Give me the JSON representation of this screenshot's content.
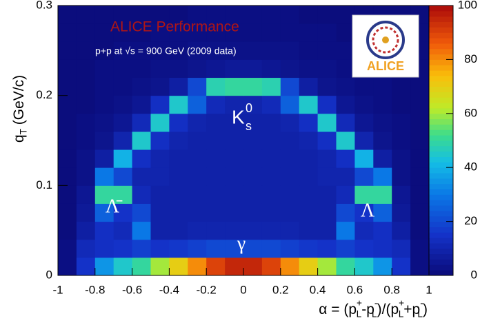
{
  "chart_data": {
    "type": "heatmap",
    "title": "ALICE Performance",
    "subtitle": "p+p at √s = 900 GeV (2009 data)",
    "logo_text": "ALICE",
    "x_label": [
      {
        "text": "α = (p"
      },
      {
        "text": "+",
        "s": "sup"
      },
      {
        "text": "L",
        "s": "sub"
      },
      {
        "text": "-p"
      },
      {
        "text": "-",
        "s": "sup"
      },
      {
        "text": "L",
        "s": "sub"
      },
      {
        "text": ")/(p"
      },
      {
        "text": "+",
        "s": "sup"
      },
      {
        "text": "L",
        "s": "sub"
      },
      {
        "text": "+p"
      },
      {
        "text": "-",
        "s": "sup"
      },
      {
        "text": "L",
        "s": "sub"
      },
      {
        "text": ")"
      }
    ],
    "y_label": [
      {
        "text": "q"
      },
      {
        "text": "T",
        "s": "sub"
      },
      {
        "text": " (GeV/c)"
      }
    ],
    "annotations": [
      {
        "text": "K",
        "sup": "0",
        "sub": "s"
      },
      {
        "text": "Λ̄"
      },
      {
        "text": "Λ"
      },
      {
        "text": "γ"
      }
    ],
    "xlim": [
      -1,
      1
    ],
    "xticks": [
      -1,
      -0.8,
      -0.6,
      -0.4,
      -0.2,
      0,
      0.2,
      0.4,
      0.6,
      0.8,
      1
    ],
    "ylim": [
      0,
      0.3
    ],
    "yticks": [
      0,
      0.1,
      0.2,
      0.3
    ],
    "zlim": [
      0,
      100
    ],
    "zticks": [
      0,
      20,
      40,
      60,
      80,
      100
    ],
    "xbins": [
      -1,
      -0.9,
      -0.8,
      -0.7,
      -0.6,
      -0.5,
      -0.4,
      -0.3,
      -0.2,
      -0.1,
      0,
      0.1,
      0.2,
      0.3,
      0.4,
      0.5,
      0.6,
      0.7,
      0.8,
      0.9,
      1
    ],
    "ybins": [
      0,
      0.02,
      0.04,
      0.06,
      0.08,
      0.1,
      0.12,
      0.14,
      0.16,
      0.18,
      0.2,
      0.22,
      0.24,
      0.26,
      0.28,
      0.3
    ],
    "z": [
      [
        2,
        15,
        35,
        45,
        50,
        60,
        70,
        80,
        90,
        95,
        95,
        90,
        80,
        70,
        60,
        50,
        45,
        35,
        15,
        2
      ],
      [
        2,
        12,
        14,
        15,
        18,
        15,
        16,
        18,
        20,
        20,
        20,
        20,
        18,
        16,
        15,
        18,
        15,
        14,
        12,
        2
      ],
      [
        1,
        8,
        14,
        12,
        30,
        9,
        9,
        10,
        10,
        10,
        10,
        10,
        10,
        9,
        9,
        30,
        12,
        14,
        8,
        1
      ],
      [
        1,
        6,
        25,
        15,
        20,
        9,
        9,
        9,
        9,
        9,
        9,
        9,
        9,
        9,
        9,
        20,
        15,
        25,
        6,
        1
      ],
      [
        1,
        5,
        50,
        50,
        12,
        9,
        9,
        9,
        9,
        9,
        9,
        9,
        9,
        9,
        9,
        12,
        50,
        50,
        5,
        1
      ],
      [
        1,
        3,
        30,
        20,
        10,
        10,
        9,
        9,
        9,
        9,
        9,
        9,
        9,
        9,
        10,
        10,
        20,
        30,
        3,
        1
      ],
      [
        1,
        3,
        8,
        40,
        14,
        10,
        9,
        9,
        9,
        9,
        9,
        9,
        9,
        9,
        10,
        14,
        40,
        8,
        3,
        1
      ],
      [
        1,
        2,
        4,
        10,
        45,
        14,
        10,
        9,
        9,
        9,
        9,
        9,
        9,
        10,
        14,
        45,
        10,
        4,
        2,
        1
      ],
      [
        1,
        2,
        3,
        5,
        12,
        45,
        14,
        10,
        9,
        9,
        9,
        9,
        10,
        14,
        45,
        12,
        5,
        3,
        2,
        1
      ],
      [
        1,
        1,
        2,
        3,
        5,
        14,
        45,
        25,
        12,
        10,
        10,
        12,
        25,
        45,
        14,
        5,
        3,
        2,
        1,
        1
      ],
      [
        1,
        1,
        2,
        2,
        3,
        4,
        8,
        20,
        48,
        50,
        50,
        48,
        20,
        8,
        4,
        3,
        2,
        2,
        1,
        1
      ],
      [
        1,
        1,
        2,
        2,
        2,
        3,
        3,
        4,
        5,
        6,
        6,
        5,
        4,
        3,
        3,
        2,
        2,
        2,
        1,
        1
      ],
      [
        1,
        1,
        1,
        2,
        2,
        2,
        2,
        3,
        3,
        3,
        3,
        3,
        3,
        2,
        2,
        2,
        2,
        1,
        1,
        1
      ],
      [
        1,
        1,
        1,
        1,
        1,
        2,
        2,
        2,
        2,
        2,
        2,
        2,
        2,
        2,
        2,
        1,
        1,
        1,
        1,
        1
      ],
      [
        1,
        1,
        1,
        1,
        1,
        1,
        1,
        2,
        2,
        2,
        2,
        2,
        2,
        1,
        1,
        1,
        1,
        1,
        1,
        1
      ]
    ]
  }
}
